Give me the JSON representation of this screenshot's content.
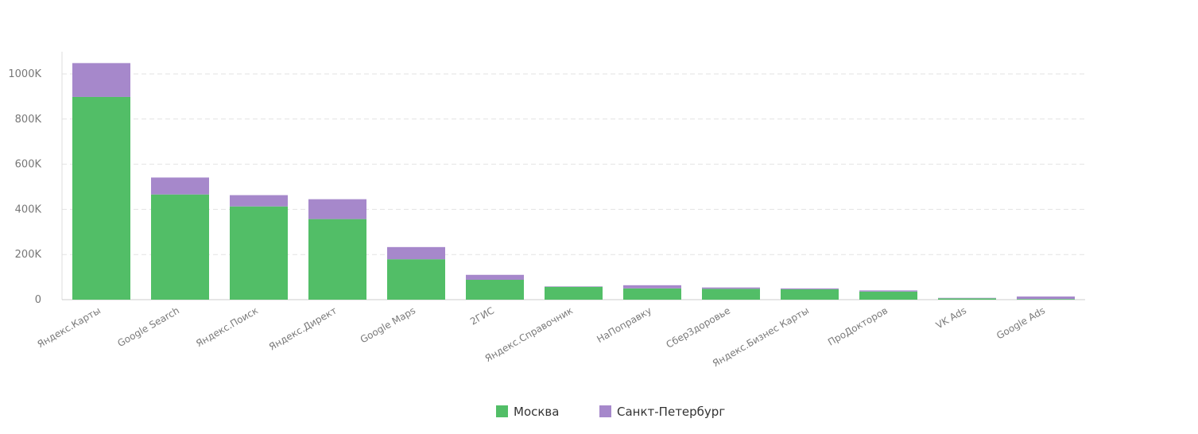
{
  "chart_data": {
    "type": "bar",
    "stacked": true,
    "categories": [
      "Яндекс.Карты",
      "Google Search",
      "Яндекс.Поиск",
      "Яндекс.Директ",
      "Google Maps",
      "2ГИС",
      "Яндекс.Справочник",
      "НаПоправку",
      "СберЗдоровье",
      "Яндекс.Бизнес Карты",
      "ПроДокторов",
      "VK Ads",
      "Google Ads"
    ],
    "series": [
      {
        "name": "Москва",
        "color": "#52be67",
        "values": [
          898000,
          466000,
          413000,
          357000,
          179000,
          88000,
          57000,
          50000,
          48000,
          46000,
          36000,
          6000,
          3000
        ]
      },
      {
        "name": "Санкт-Петербург",
        "color": "#a688cb",
        "values": [
          150000,
          75000,
          50000,
          88000,
          54000,
          22000,
          2000,
          14000,
          6000,
          4000,
          5000,
          2000,
          11000
        ]
      }
    ],
    "ylim": [
      0,
      1100000
    ],
    "yticks": [
      0,
      200000,
      400000,
      600000,
      800000,
      1000000
    ],
    "ytick_labels": [
      "0",
      "200K",
      "400K",
      "600K",
      "800K",
      "1000K"
    ],
    "xlabel": "",
    "ylabel": "",
    "grid": true,
    "legend_position": "bottom-center"
  }
}
